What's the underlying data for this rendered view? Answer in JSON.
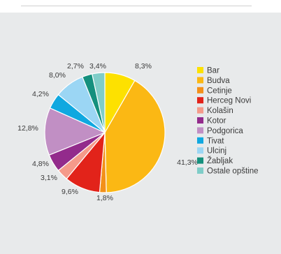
{
  "chart_data": {
    "type": "pie",
    "title": "",
    "slices": [
      {
        "label": "Bar",
        "value": 8.3,
        "value_label": "8,3%",
        "color": "#fde100"
      },
      {
        "label": "Budva",
        "value": 41.3,
        "value_label": "41,3%",
        "color": "#fbb814"
      },
      {
        "label": "Cetinje",
        "value": 1.8,
        "value_label": "1,8%",
        "color": "#f39019"
      },
      {
        "label": "Herceg Novi",
        "value": 9.6,
        "value_label": "9,6%",
        "color": "#e2231a"
      },
      {
        "label": "Kolašin",
        "value": 3.1,
        "value_label": "3,1%",
        "color": "#f59a8a"
      },
      {
        "label": "Kotor",
        "value": 4.8,
        "value_label": "4,8%",
        "color": "#932b8c"
      },
      {
        "label": "Podgorica",
        "value": 12.8,
        "value_label": "12,8%",
        "color": "#c18fc4"
      },
      {
        "label": "Tivat",
        "value": 4.2,
        "value_label": "4,2%",
        "color": "#10a8e0"
      },
      {
        "label": "Ulcinj",
        "value": 8.0,
        "value_label": "8,0%",
        "color": "#9bd6f4"
      },
      {
        "label": "Žabljak",
        "value": 2.7,
        "value_label": "2,7%",
        "color": "#14907d"
      },
      {
        "label": "Ostale opštine",
        "value": 3.4,
        "value_label": "3,4%",
        "color": "#7fcdc8"
      }
    ],
    "legend_position": "right"
  }
}
